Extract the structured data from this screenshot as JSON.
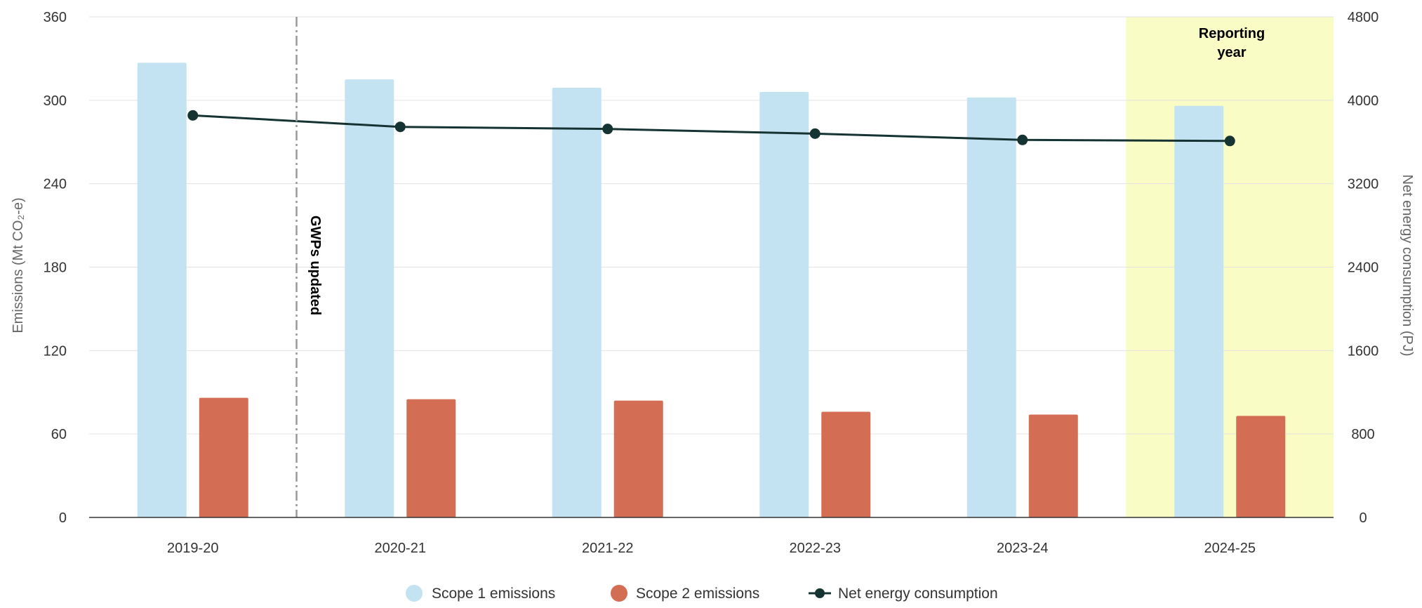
{
  "chart_data": {
    "type": "bar",
    "categories": [
      "2019-20",
      "2020-21",
      "2021-22",
      "2022-23",
      "2023-24",
      "2024-25"
    ],
    "series": [
      {
        "name": "Scope 1 emissions",
        "type": "bar",
        "axis": "left",
        "color": "#c4e3f2",
        "values": [
          327,
          315,
          309,
          306,
          302,
          296
        ]
      },
      {
        "name": "Scope 2 emissions",
        "type": "bar",
        "axis": "left",
        "color": "#d36d53",
        "values": [
          86,
          85,
          84,
          76,
          74,
          73
        ]
      },
      {
        "name": "Net energy consumption",
        "type": "line",
        "axis": "right",
        "color": "#163334",
        "values": [
          3855,
          3745,
          3725,
          3680,
          3620,
          3610
        ]
      }
    ],
    "ylabel": "Emissions (Mt CO₂-e)",
    "y2label": "Net energy consumption (PJ)",
    "ylim": [
      0,
      360
    ],
    "y2lim": [
      0,
      4800
    ],
    "yticks": [
      "0",
      "60",
      "120",
      "180",
      "240",
      "300",
      "360"
    ],
    "y2ticks": [
      "0",
      "800",
      "1600",
      "2400",
      "3200",
      "4000",
      "4800"
    ],
    "annotations": {
      "gwp_label": "GWPs updated",
      "reporting_label_line1": "Reporting",
      "reporting_label_line2": "year"
    },
    "reporting_highlight_color": "#fafcc5",
    "legend_position": "bottom",
    "grid": true
  }
}
